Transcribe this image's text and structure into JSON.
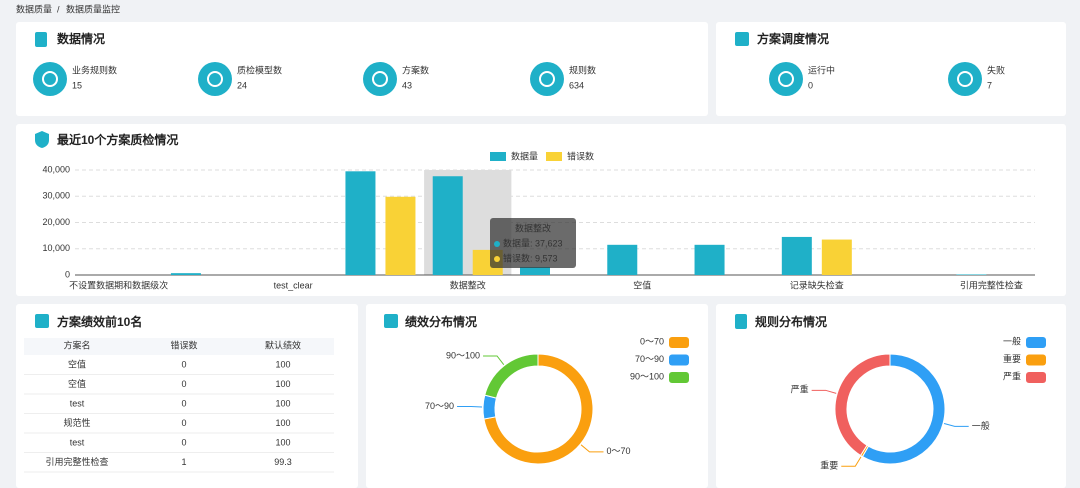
{
  "breadcrumb": {
    "items": [
      "数据质量",
      "数据质量监控"
    ],
    "separator": "/"
  },
  "overview": {
    "title": "数据情况",
    "stats": [
      {
        "label": "业务规则数",
        "value": 15
      },
      {
        "label": "质检模型数",
        "value": 24
      },
      {
        "label": "方案数",
        "value": 43
      },
      {
        "label": "规则数",
        "value": 634
      }
    ]
  },
  "schedule": {
    "title": "方案调度情况",
    "stats": [
      {
        "label": "运行中",
        "value": 0
      },
      {
        "label": "失败",
        "value": 7
      }
    ]
  },
  "chart_data": [
    {
      "type": "bar",
      "title": "最近10个方案质检情况",
      "categories": [
        "不设置数据期和数据级次",
        null,
        "test_clear",
        null,
        "数据整改",
        null,
        "空值",
        null,
        "记录缺失检查",
        null,
        "引用完整性检查"
      ],
      "series": [
        {
          "name": "数据量",
          "color": "#1fb0c8",
          "values": [
            0,
            700,
            0,
            39500,
            37623,
            3000,
            11500,
            11500,
            14500,
            0,
            200
          ]
        },
        {
          "name": "错误数",
          "color": "#f9d236",
          "values": [
            0,
            0,
            0,
            29800,
            9573,
            0,
            0,
            0,
            13500,
            0,
            0
          ]
        }
      ],
      "ylim": [
        0,
        40000
      ],
      "yticks": [
        0,
        {
          "value": 10000,
          "label": "10,000"
        },
        {
          "value": 20000,
          "label": "20,000"
        },
        {
          "value": 30000,
          "label": "30,000"
        },
        {
          "value": 40000,
          "label": "40,000"
        }
      ],
      "grid": true,
      "legend": "top",
      "tooltip": {
        "title": "数据整改",
        "lines": [
          "数据量: 37,623",
          "错误数: 9,573"
        ]
      }
    },
    {
      "type": "pie",
      "title": "绩效分布情况",
      "categories": [
        "0～70",
        "70～90",
        "90～100"
      ],
      "values": [
        31,
        3,
        9
      ],
      "colors": [
        "#fa9f0f",
        "#2f9ff5",
        "#62c835"
      ],
      "donut": true,
      "legend": "top-right"
    },
    {
      "type": "pie",
      "title": "规则分布情况",
      "categories": [
        "一般",
        "重要",
        "严重"
      ],
      "values": [
        370,
        4,
        260
      ],
      "colors": [
        "#2f9ff5",
        "#fa9f0f",
        "#f0605e"
      ],
      "donut": true,
      "legend": "top-right"
    }
  ],
  "table": {
    "title": "方案绩效前10名",
    "columns": [
      "方案名",
      "错误数",
      "默认绩效"
    ],
    "rows": [
      [
        "空值",
        0,
        100
      ],
      [
        "空值",
        0,
        100
      ],
      [
        "test",
        0,
        100
      ],
      [
        "规范性",
        0,
        100
      ],
      [
        "test",
        0,
        100
      ],
      [
        "引用完整性检查",
        1,
        99.3
      ]
    ]
  }
}
